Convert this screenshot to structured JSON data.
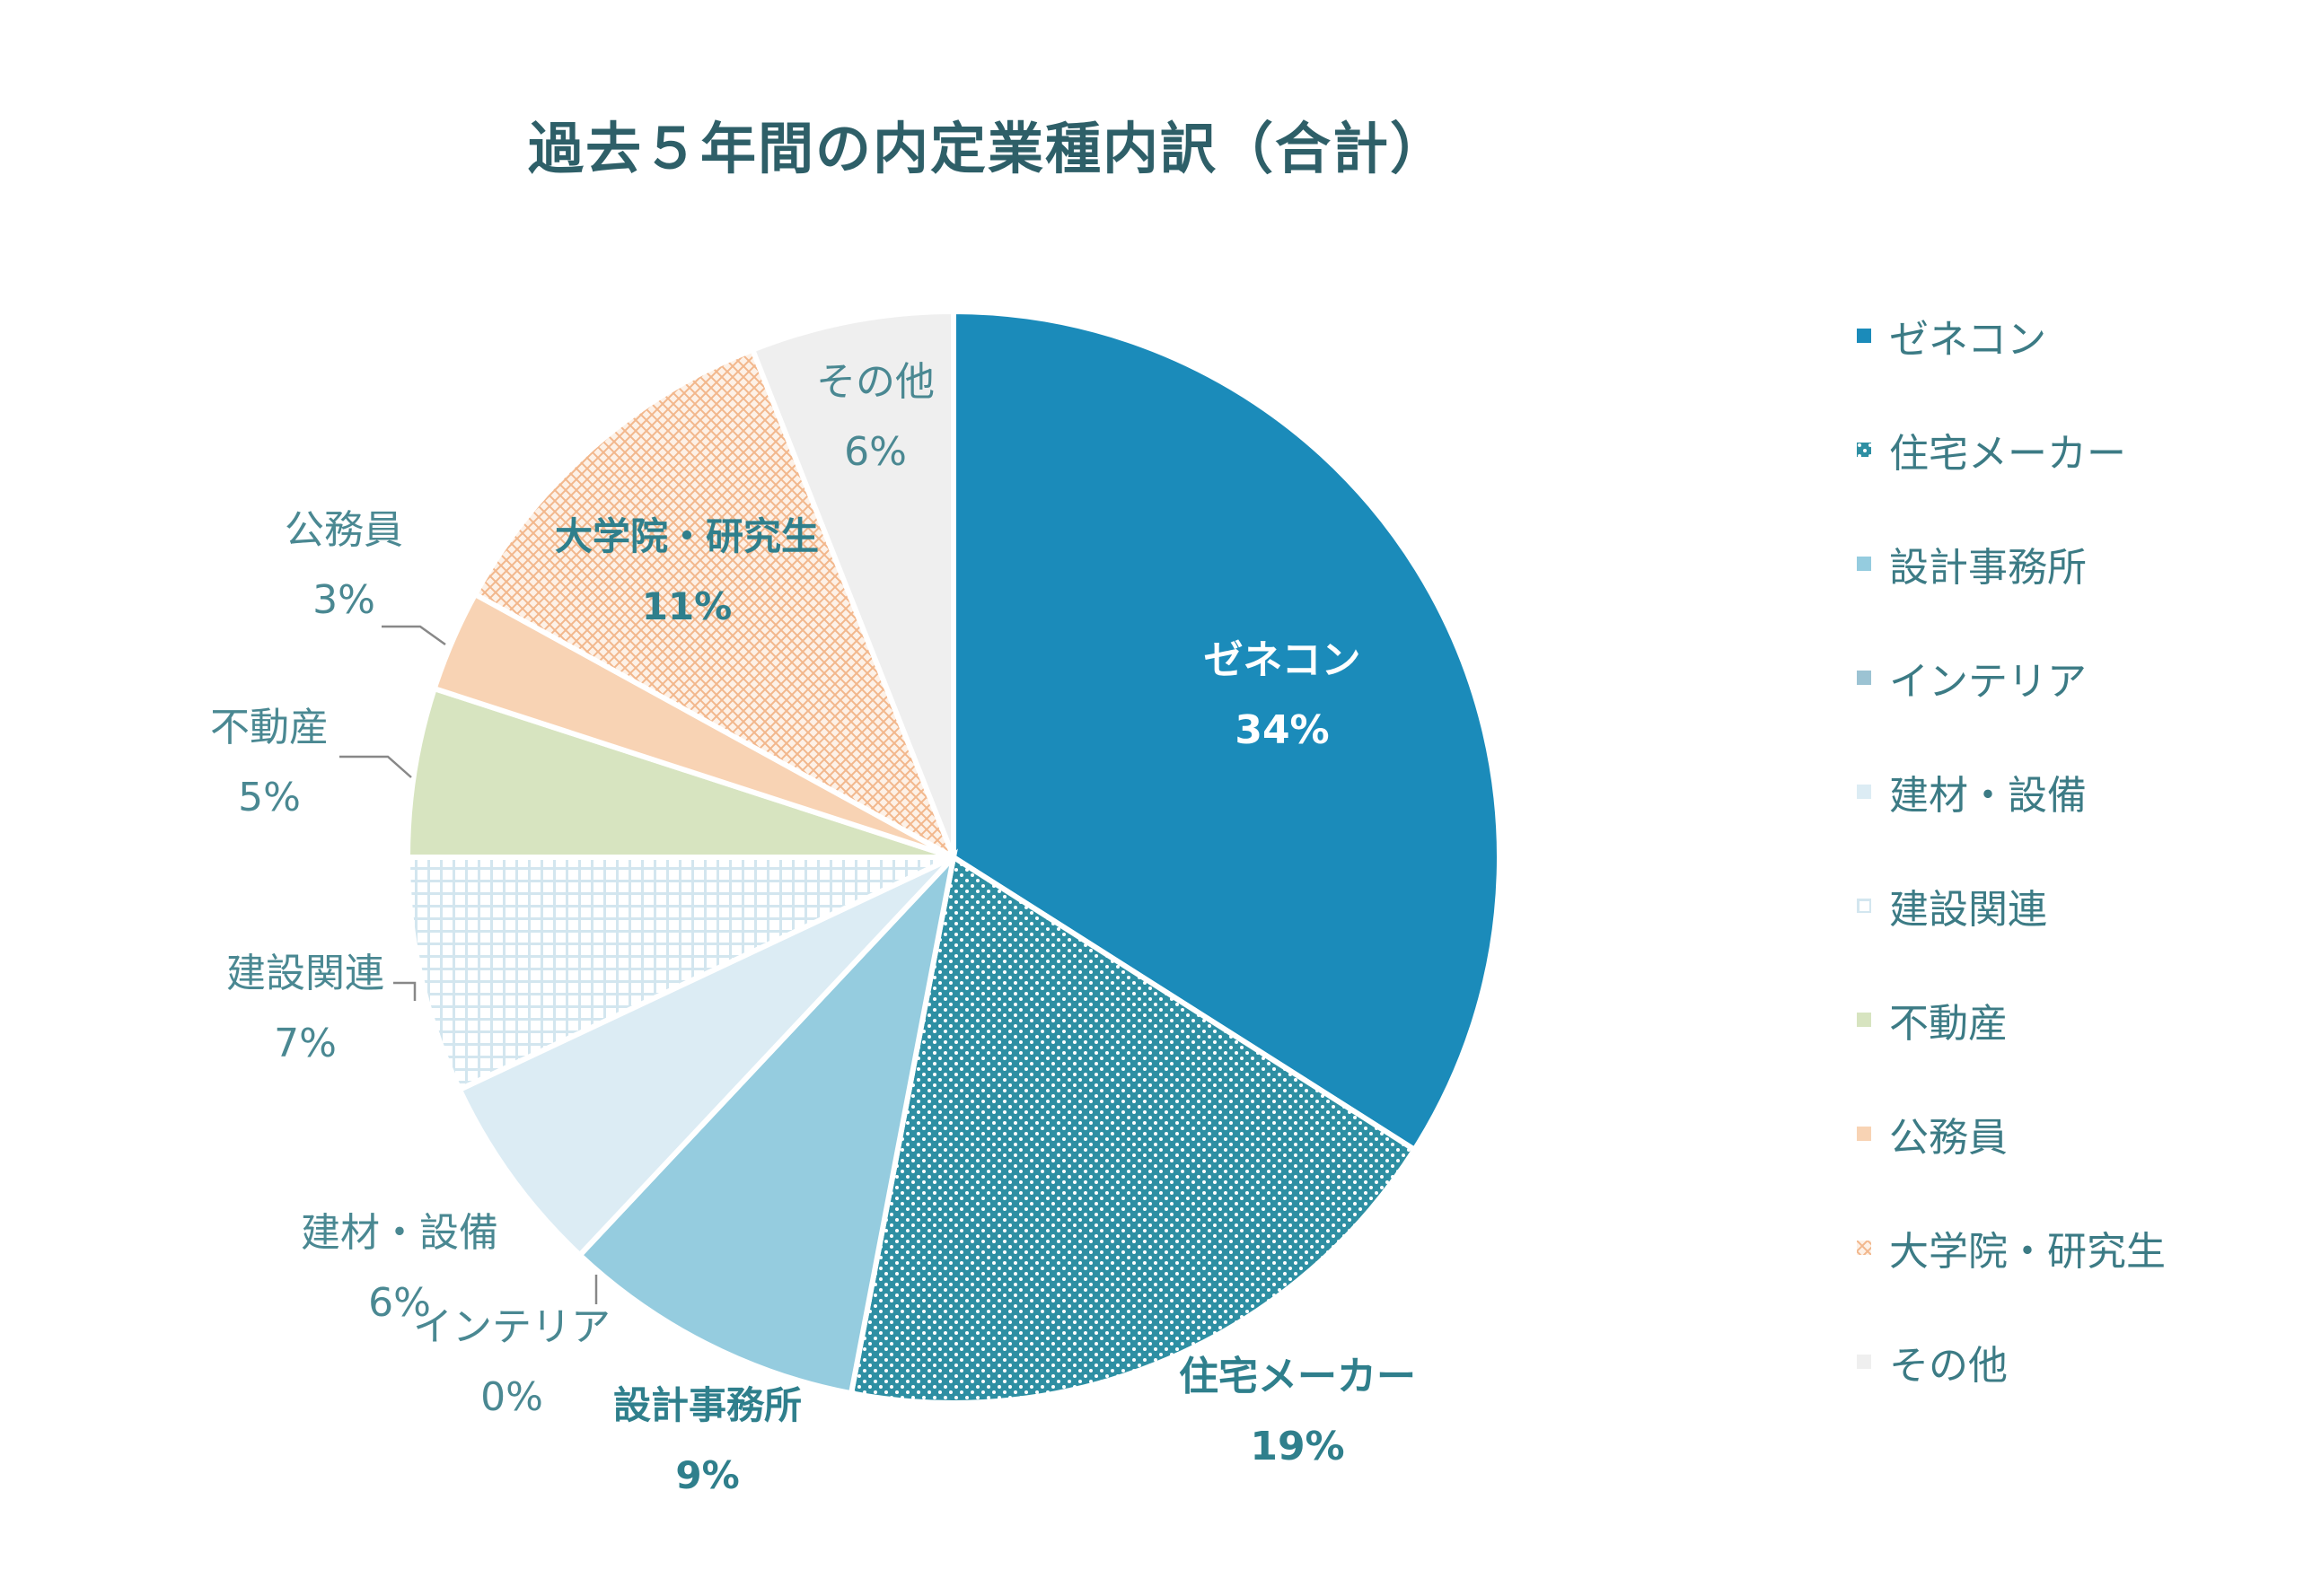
{
  "title": "過去５年間の内定業種内訳（合計）",
  "chart_data": {
    "type": "pie",
    "title": "過去５年間の内定業種内訳（合計）",
    "slices": [
      {
        "name": "ゼネコン",
        "value": 34,
        "label": "34%",
        "color": "#1b8bba",
        "pattern": "solid"
      },
      {
        "name": "住宅メーカー",
        "value": 19,
        "label": "19%",
        "color": "#2e8fa3",
        "pattern": "dots"
      },
      {
        "name": "設計事務所",
        "value": 9,
        "label": "9%",
        "color": "#95ccdf",
        "pattern": "solid"
      },
      {
        "name": "インテリア",
        "value": 0,
        "label": "0%",
        "color": "#9cc3d3",
        "pattern": "solid"
      },
      {
        "name": "建材・設備",
        "value": 6,
        "label": "6%",
        "color": "#dcecf4",
        "pattern": "solid"
      },
      {
        "name": "建設関連",
        "value": 7,
        "label": "7%",
        "color": "#cfe3ec",
        "pattern": "grid"
      },
      {
        "name": "不動産",
        "value": 5,
        "label": "5%",
        "color": "#d7e4c0",
        "pattern": "solid"
      },
      {
        "name": "公務員",
        "value": 3,
        "label": "3%",
        "color": "#f8d3b4",
        "pattern": "solid"
      },
      {
        "name": "大学院・研究生",
        "value": 11,
        "label": "11%",
        "color": "#f2b78c",
        "pattern": "cross"
      },
      {
        "name": "その他",
        "value": 6,
        "label": "6%",
        "color": "#efefef",
        "pattern": "solid"
      }
    ],
    "legend_position": "right"
  }
}
